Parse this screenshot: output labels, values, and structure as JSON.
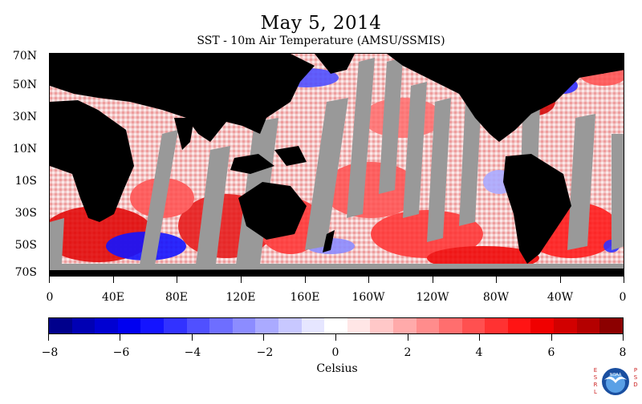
{
  "title": "May 5, 2014",
  "subtitle": "SST - 10m Air Temperature (AMSU/SSMIS)",
  "map": {
    "latitude_labels": [
      "70N",
      "50N",
      "30N",
      "10N",
      "10S",
      "30S",
      "50S",
      "70S"
    ],
    "longitude_labels": [
      "0",
      "40E",
      "80E",
      "120E",
      "160E",
      "160W",
      "120W",
      "80W",
      "40W",
      "0"
    ],
    "colors": {
      "land": "#000000",
      "no_data": "#999999",
      "ocean_base": "#f7dede"
    }
  },
  "colorbar": {
    "unit": "Celsius",
    "tick_labels": [
      "−8",
      "−6",
      "−4",
      "−2",
      "0",
      "2",
      "4",
      "6",
      "8"
    ],
    "range": [
      -8,
      8
    ],
    "colors": [
      "#00008c",
      "#0000b4",
      "#0000d2",
      "#0000f0",
      "#1414ff",
      "#3232ff",
      "#5050ff",
      "#6e6eff",
      "#8c8cff",
      "#aaaaff",
      "#c8c8ff",
      "#e6e6ff",
      "#ffffff",
      "#ffe6e6",
      "#ffc8c8",
      "#ffaaaa",
      "#ff8c8c",
      "#ff6e6e",
      "#ff5050",
      "#ff3232",
      "#ff1414",
      "#f00000",
      "#d20000",
      "#b40000",
      "#8c0000"
    ]
  },
  "logo": {
    "left_text": "ESRL",
    "right_text": "PSD",
    "center_text": "NOAA",
    "colors": {
      "text": "#cc2222",
      "outer": "#1a4fa0",
      "inner": "#5aa0e6"
    }
  }
}
